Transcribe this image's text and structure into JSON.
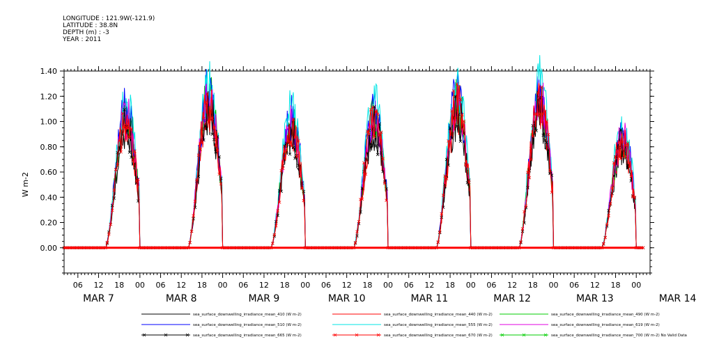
{
  "header": {
    "longitude_label": "LONGITUDE : 121.9W(-121.9)",
    "latitude_label": "LATITUDE : 38.8N",
    "depth_label": "DEPTH (m) : -3",
    "year_label": "YEAR : 2011"
  },
  "chart_data": {
    "type": "line",
    "title": "",
    "ylabel": "W m-2",
    "xlabel": "",
    "ylim": [
      -0.2,
      1.4
    ],
    "yticks": [
      0.0,
      0.2,
      0.4,
      0.6,
      0.8,
      1.0,
      1.2,
      1.4
    ],
    "ytick_labels": [
      "0.00",
      "0.20",
      "0.40",
      "0.60",
      "0.80",
      "1.00",
      "1.20",
      "1.40"
    ],
    "xlim_hours": [
      "2011-03-07T02:00",
      "2011-03-14T04:00"
    ],
    "hour_tick_labels": [
      "06",
      "12",
      "18",
      "00"
    ],
    "date_labels": [
      "MAR 7",
      "MAR 8",
      "MAR 9",
      "MAR 10",
      "MAR 11",
      "MAR 12",
      "MAR 13",
      "MAR 14"
    ],
    "grid": false,
    "days": [
      {
        "date": "MAR 7",
        "sunrise_hour": 14,
        "sunset_hour": 26,
        "peak": 1.02
      },
      {
        "date": "MAR 8",
        "sunrise_hour": 14,
        "sunset_hour": 26,
        "peak": 1.15
      },
      {
        "date": "MAR 9",
        "sunrise_hour": 14,
        "sunset_hour": 26,
        "peak": 0.95
      },
      {
        "date": "MAR 10",
        "sunrise_hour": 14,
        "sunset_hour": 26,
        "peak": 1.0
      },
      {
        "date": "MAR 11",
        "sunrise_hour": 14,
        "sunset_hour": 26,
        "peak": 1.12
      },
      {
        "date": "MAR 12",
        "sunrise_hour": 14,
        "sunset_hour": 26,
        "peak": 1.15
      },
      {
        "date": "MAR 13",
        "sunrise_hour": 14,
        "sunset_hour": 26,
        "peak": 0.85
      }
    ],
    "series": [
      {
        "name": "sea_surface_downwelling_irradiance_mean_410 (W m-2)",
        "color": "#000000",
        "scale": 0.92,
        "marker": false
      },
      {
        "name": "sea_surface_downwelling_irradiance_mean_440 (W m-2)",
        "color": "#ff0000",
        "scale": 0.97,
        "marker": false
      },
      {
        "name": "sea_surface_downwelling_irradiance_mean_490 (W m-2)",
        "color": "#00cc00",
        "scale": 1.03,
        "marker": false
      },
      {
        "name": "sea_surface_downwelling_irradiance_mean_510 (W m-2)",
        "color": "#0000ff",
        "scale": 1.08,
        "marker": false
      },
      {
        "name": "sea_surface_downwelling_irradiance_mean_555 (W m-2)",
        "color": "#00e5e5",
        "scale": 1.13,
        "marker": false
      },
      {
        "name": "sea_surface_downwelling_irradiance_mean_619 (W m-2)",
        "color": "#e000e0",
        "scale": 1.02,
        "marker": false
      },
      {
        "name": "sea_surface_downwelling_irradiance_mean_665 (W m-2)",
        "color": "#000000",
        "scale": 0.95,
        "marker": true
      },
      {
        "name": "sea_surface_downwelling_irradiance_mean_670 (W m-2)",
        "color": "#ff0000",
        "scale": 1.0,
        "marker": true
      },
      {
        "name": "sea_surface_downwelling_irradiance_mean_700 (W m-2) No Valid Data",
        "color": "#00cc00",
        "scale": 0.0,
        "marker": true
      }
    ]
  }
}
